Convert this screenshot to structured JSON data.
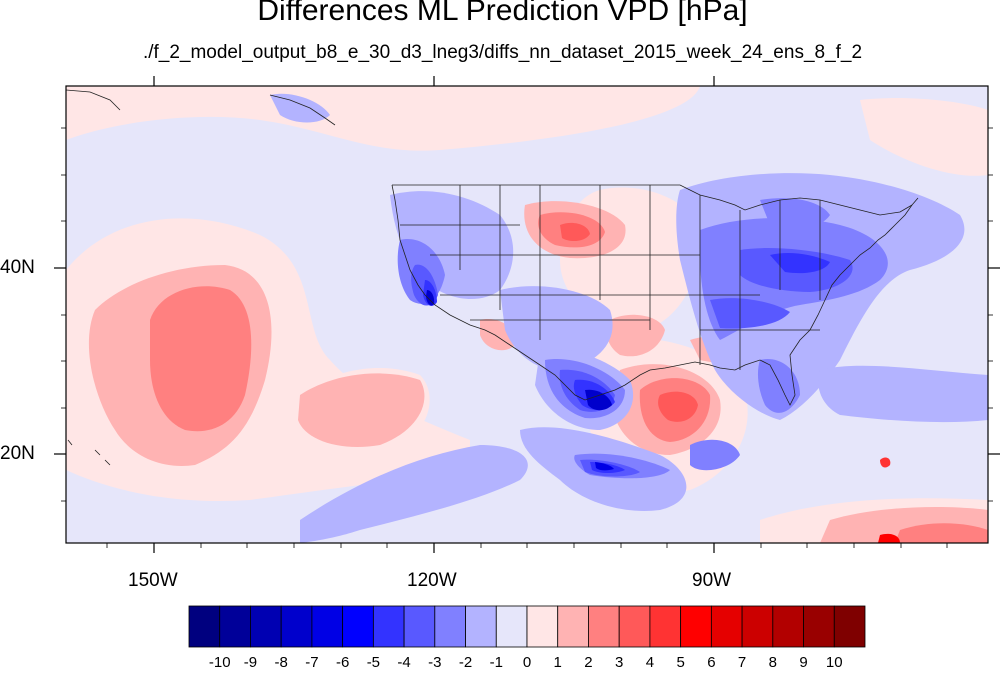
{
  "figure": {
    "title": "Differences ML Prediction VPD [hPa]",
    "subtitle": "./f_2_model_output_b8_e_30_d3_lneg3/diffs_nn_dataset_2015_week_24_ens_8_f_2"
  },
  "axes": {
    "lon_labels": [
      "150W",
      "120W",
      "90W"
    ],
    "lat_labels": [
      "40N",
      "20N"
    ]
  },
  "colorbar": {
    "labels": [
      "-10",
      "-9",
      "-8",
      "-7",
      "-6",
      "-5",
      "-4",
      "-3",
      "-2",
      "-1",
      "0",
      "1",
      "2",
      "3",
      "4",
      "5",
      "6",
      "7",
      "8",
      "9",
      "10"
    ],
    "colors": [
      "#00007f",
      "#000099",
      "#0000b2",
      "#0000cc",
      "#0000e5",
      "#0000ff",
      "#3333ff",
      "#5959ff",
      "#8080ff",
      "#b3b3ff",
      "#e6e6fa",
      "#ffe6e6",
      "#ffb3b3",
      "#ff8080",
      "#ff5959",
      "#ff3333",
      "#ff0000",
      "#e50000",
      "#cc0000",
      "#b20000",
      "#990000",
      "#7f0000"
    ]
  }
}
